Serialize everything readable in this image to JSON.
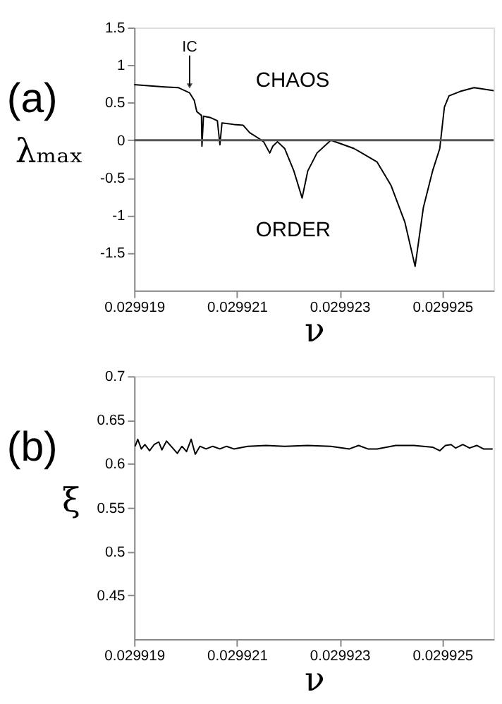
{
  "chart_data": [
    {
      "type": "line",
      "title": "(a)",
      "xlabel": "ν",
      "ylabel": "λₘₐₓ",
      "x": [
        0.029919,
        0.02991959,
        0.02991986,
        0.02992008,
        0.02992017,
        0.02992022,
        0.02992031,
        0.02992032,
        0.02992035,
        0.02992049,
        0.02992062,
        0.02992067,
        0.02992071,
        0.02992094,
        0.02992112,
        0.02992125,
        0.02992139,
        0.02992152,
        0.02992164,
        0.0299217,
        0.02992179,
        0.02992193,
        0.02992211,
        0.02992227,
        0.02992238,
        0.02992256,
        0.02992283,
        0.02992328,
        0.02992373,
        0.029924,
        0.02992427,
        0.02992447,
        0.02992463,
        0.02992481,
        0.02992495,
        0.02992504,
        0.02992513,
        0.02992535,
        0.02992562,
        0.029926
      ],
      "series": [
        {
          "color": "#000000",
          "values": [
            0.74,
            0.71,
            0.7,
            0.63,
            0.53,
            0.38,
            0.33,
            -0.08,
            0.32,
            0.3,
            0.26,
            -0.06,
            0.23,
            0.21,
            0.2,
            0.1,
            0.04,
            -0.02,
            -0.17,
            -0.08,
            -0.02,
            -0.11,
            -0.41,
            -0.77,
            -0.41,
            -0.17,
            0,
            -0.11,
            -0.29,
            -0.6,
            -1.09,
            -1.68,
            -0.9,
            -0.41,
            -0.11,
            0.44,
            0.59,
            0.65,
            0.7,
            0.66
          ]
        }
      ],
      "xlim": [
        0.029919,
        0.029926
      ],
      "xticks": [
        0.029919,
        0.029921,
        0.029923,
        0.029925
      ],
      "ylim": [
        -2,
        1.5
      ],
      "yticks": [
        -1.5,
        -1,
        -0.5,
        0,
        0.5,
        1,
        1.5
      ],
      "ref_lines": [
        {
          "axis": "y",
          "value": 0,
          "color": "#555555"
        }
      ],
      "annotations": [
        {
          "text": "IC",
          "x": 0.02992008,
          "y": 0.63
        },
        "CHAOS",
        "ORDER"
      ],
      "grid": false,
      "marker": "none",
      "line_style": "solid"
    },
    {
      "type": "line",
      "title": "(b)",
      "xlabel": "ν",
      "ylabel": "ξ",
      "x": [
        0.02991902,
        0.02991907,
        0.02991914,
        0.02991921,
        0.0299193,
        0.02991939,
        0.02991948,
        0.02991954,
        0.02991963,
        0.02991972,
        0.02991984,
        0.02991993,
        0.02992002,
        0.02992011,
        0.02992019,
        0.02992028,
        0.0299204,
        0.02992053,
        0.02992067,
        0.0299208,
        0.02992094,
        0.02992121,
        0.02992157,
        0.02992193,
        0.02992238,
        0.02992283,
        0.02992319,
        0.02992337,
        0.02992355,
        0.02992373,
        0.02992409,
        0.02992445,
        0.02992481,
        0.02992495,
        0.02992506,
        0.02992517,
        0.02992526,
        0.0299254,
        0.02992553,
        0.02992567,
        0.0299258,
        0.02992598
      ],
      "series": [
        {
          "color": "#000000",
          "values": [
            0.62,
            0.628,
            0.617,
            0.622,
            0.615,
            0.622,
            0.625,
            0.616,
            0.626,
            0.62,
            0.612,
            0.62,
            0.614,
            0.628,
            0.611,
            0.62,
            0.617,
            0.62,
            0.617,
            0.62,
            0.617,
            0.62,
            0.621,
            0.62,
            0.621,
            0.62,
            0.617,
            0.621,
            0.617,
            0.617,
            0.621,
            0.621,
            0.619,
            0.615,
            0.621,
            0.622,
            0.618,
            0.622,
            0.618,
            0.621,
            0.617,
            0.617
          ]
        }
      ],
      "xlim": [
        0.029919,
        0.029926
      ],
      "xticks": [
        0.029919,
        0.029921,
        0.029923,
        0.029925
      ],
      "ylim": [
        0.4,
        0.7
      ],
      "yticks": [
        0.45,
        0.5,
        0.55,
        0.6,
        0.65,
        0.7
      ],
      "grid": false,
      "marker": "none",
      "line_style": "solid"
    }
  ]
}
